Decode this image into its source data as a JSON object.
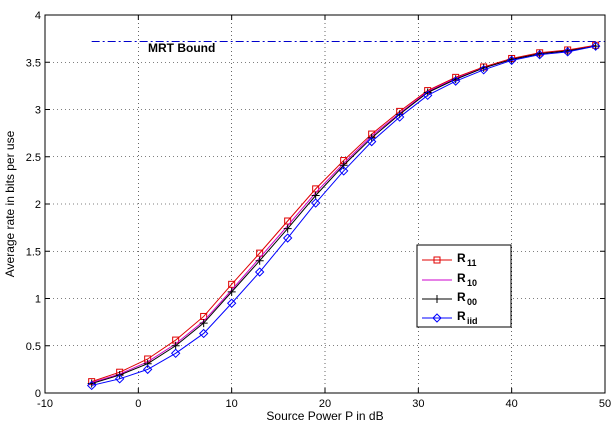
{
  "chart_data": {
    "type": "line",
    "xlabel": "Source Power P in dB",
    "ylabel": "Average rate in bits per use",
    "xlim": [
      -10,
      50
    ],
    "ylim": [
      0,
      4
    ],
    "xticks": [
      -10,
      0,
      10,
      20,
      30,
      40,
      50
    ],
    "yticks": [
      0,
      0.5,
      1,
      1.5,
      2,
      2.5,
      3,
      3.5,
      4
    ],
    "grid": true,
    "legend_position": "lower-right",
    "bound": {
      "label": "MRT Bound",
      "value": 3.72,
      "color": "#0000cc"
    },
    "x": [
      -5,
      -2,
      1,
      4,
      7,
      10,
      13,
      16,
      19,
      22,
      25,
      28,
      31,
      34,
      37,
      40,
      43,
      46,
      49
    ],
    "series": [
      {
        "name": "R",
        "sub": "11",
        "color": "#e00000",
        "marker": "square",
        "values": [
          0.12,
          0.22,
          0.36,
          0.56,
          0.81,
          1.15,
          1.48,
          1.82,
          2.16,
          2.46,
          2.74,
          2.98,
          3.2,
          3.34,
          3.45,
          3.54,
          3.6,
          3.63,
          3.68
        ]
      },
      {
        "name": "R",
        "sub": "10",
        "color": "#cc00cc",
        "marker": "none",
        "values": [
          0.11,
          0.2,
          0.33,
          0.52,
          0.76,
          1.09,
          1.43,
          1.77,
          2.12,
          2.43,
          2.72,
          2.96,
          3.19,
          3.33,
          3.44,
          3.53,
          3.59,
          3.62,
          3.67
        ]
      },
      {
        "name": "R",
        "sub": "00",
        "color": "#000000",
        "marker": "plus",
        "values": [
          0.1,
          0.19,
          0.31,
          0.5,
          0.74,
          1.07,
          1.4,
          1.74,
          2.09,
          2.41,
          2.7,
          2.95,
          3.18,
          3.32,
          3.44,
          3.53,
          3.59,
          3.62,
          3.67
        ]
      },
      {
        "name": "R",
        "sub": "iid",
        "color": "#0000ff",
        "marker": "diamond",
        "values": [
          0.08,
          0.15,
          0.25,
          0.42,
          0.63,
          0.95,
          1.28,
          1.64,
          2.01,
          2.35,
          2.66,
          2.92,
          3.15,
          3.3,
          3.42,
          3.52,
          3.58,
          3.61,
          3.67
        ]
      }
    ]
  }
}
